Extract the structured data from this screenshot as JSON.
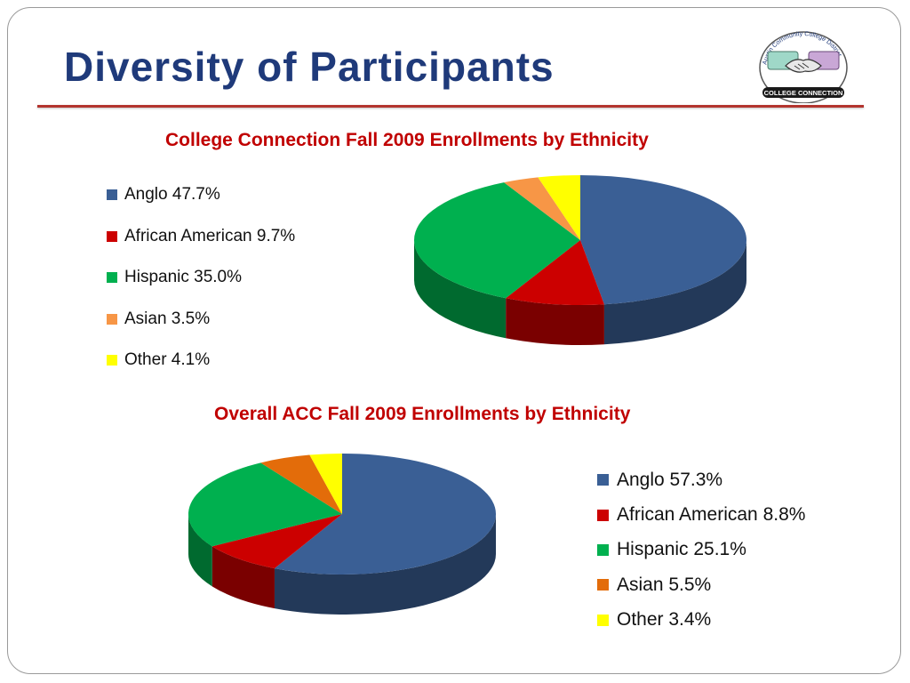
{
  "slide": {
    "title": "Diversity of Participants",
    "logo": {
      "arc_text": "Austin Community College District",
      "banner_text": "COLLEGE CONNECTION",
      "icon": "handshake-icon"
    }
  },
  "chart_data": [
    {
      "type": "pie",
      "title": "College Connection Fall 2009 Enrollments by Ethnicity",
      "categories": [
        "Anglo",
        "African American",
        "Hispanic",
        "Asian",
        "Other"
      ],
      "values": [
        47.7,
        9.7,
        35.0,
        3.5,
        4.1
      ],
      "labels": [
        "Anglo 47.7%",
        "African American 9.7%",
        "Hispanic 35.0%",
        "Asian 3.5%",
        "Other 4.1%"
      ],
      "colors": [
        "#3a5f95",
        "#cc0000",
        "#00b04f",
        "#f79646",
        "#ffff00"
      ],
      "style": "3d",
      "legend_position": "left"
    },
    {
      "type": "pie",
      "title": "Overall ACC Fall 2009 Enrollments by Ethnicity",
      "categories": [
        "Anglo",
        "African American",
        "Hispanic",
        "Asian",
        "Other"
      ],
      "values": [
        57.3,
        8.8,
        25.1,
        5.5,
        3.4
      ],
      "labels": [
        "Anglo 57.3%",
        "African American 8.8%",
        "Hispanic 25.1%",
        "Asian 5.5%",
        "Other 3.4%"
      ],
      "colors": [
        "#3a5f95",
        "#cc0000",
        "#00b04f",
        "#e36c0a",
        "#ffff00"
      ],
      "style": "3d",
      "legend_position": "right"
    }
  ]
}
